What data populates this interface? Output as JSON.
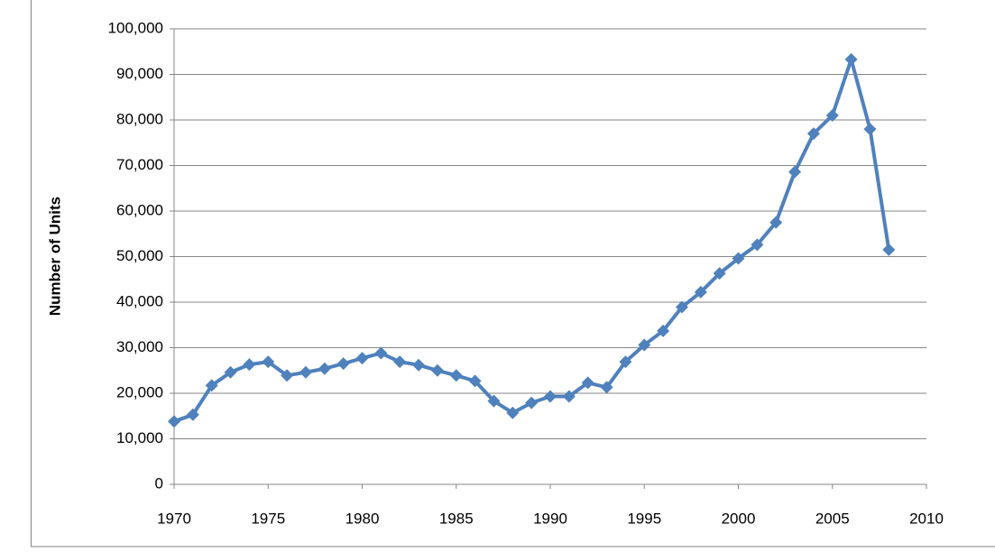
{
  "chart_data": {
    "type": "line",
    "y_label": "Number of Units",
    "x": [
      1970,
      1971,
      1972,
      1973,
      1974,
      1975,
      1976,
      1977,
      1978,
      1979,
      1980,
      1981,
      1982,
      1983,
      1984,
      1985,
      1986,
      1987,
      1988,
      1989,
      1990,
      1991,
      1992,
      1993,
      1994,
      1995,
      1996,
      1997,
      1998,
      1999,
      2000,
      2001,
      2002,
      2003,
      2004,
      2005,
      2006,
      2007,
      2008
    ],
    "values": [
      13800,
      15300,
      21700,
      24600,
      26300,
      26900,
      23900,
      24600,
      25400,
      26500,
      27700,
      28800,
      26900,
      26200,
      25000,
      23900,
      22700,
      18300,
      15700,
      17900,
      19300,
      19300,
      22300,
      21300,
      26900,
      30600,
      33700,
      38900,
      42200,
      46300,
      49600,
      52600,
      57500,
      68600,
      77000,
      81000,
      93300,
      78000,
      51500
    ],
    "color": "#4f81bd",
    "xlim": [
      1970,
      2010
    ],
    "xticks": [
      1970,
      1975,
      1980,
      1985,
      1990,
      1995,
      2000,
      2005,
      2010
    ],
    "ylim": [
      0,
      100000
    ],
    "yticks": [
      0,
      {
        "value": 10000,
        "label": "10,000"
      },
      {
        "value": 20000,
        "label": "20,000"
      },
      {
        "value": 30000,
        "label": "30,000"
      },
      {
        "value": 40000,
        "label": "40,000"
      },
      {
        "value": 50000,
        "label": "50,000"
      },
      {
        "value": 60000,
        "label": "60,000"
      },
      {
        "value": 70000,
        "label": "70,000"
      },
      {
        "value": 80000,
        "label": "80,000"
      },
      {
        "value": 90000,
        "label": "90,000"
      },
      {
        "value": 100000,
        "label": "100,000"
      }
    ],
    "grid": true
  }
}
